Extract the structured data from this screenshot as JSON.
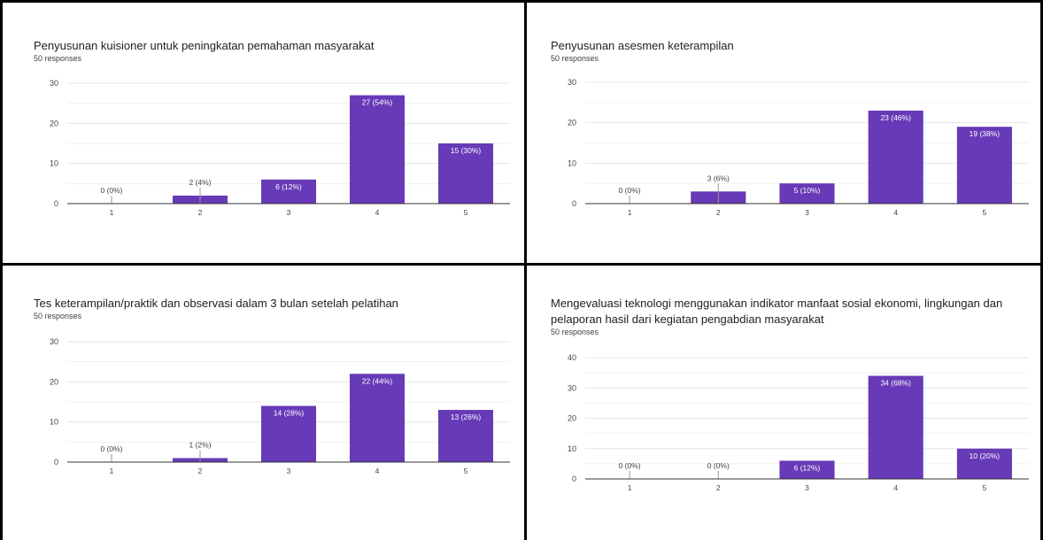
{
  "colors": {
    "bar": "#673ab7",
    "grid": "#e6e6e6",
    "axis": "#333333",
    "label_out": "#444444",
    "label_in": "#ffffff"
  },
  "chart_data": [
    {
      "type": "bar",
      "title": "Penyusunan kuisioner untuk peningkatan pemahaman masyarakat",
      "subtitle": "50 responses",
      "categories": [
        "1",
        "2",
        "3",
        "4",
        "5"
      ],
      "values": [
        0,
        2,
        6,
        27,
        15
      ],
      "labels": [
        "0 (0%)",
        "2 (4%)",
        "6 (12%)",
        "27 (54%)",
        "15 (30%)"
      ],
      "ylim": [
        0,
        30
      ],
      "yticks": [
        "0",
        "10",
        "20",
        "30"
      ],
      "grid": true
    },
    {
      "type": "bar",
      "title": "Penyusunan asesmen keterampilan",
      "subtitle": "50 responses",
      "categories": [
        "1",
        "2",
        "3",
        "4",
        "5"
      ],
      "values": [
        0,
        3,
        5,
        23,
        19
      ],
      "labels": [
        "0 (0%)",
        "3 (6%)",
        "5 (10%)",
        "23 (46%)",
        "19 (38%)"
      ],
      "ylim": [
        0,
        30
      ],
      "yticks": [
        "0",
        "10",
        "20",
        "30"
      ],
      "grid": true
    },
    {
      "type": "bar",
      "title": "Tes keterampilan/praktik dan observasi dalam 3 bulan setelah pelatihan",
      "subtitle": "50 responses",
      "categories": [
        "1",
        "2",
        "3",
        "4",
        "5"
      ],
      "values": [
        0,
        1,
        14,
        22,
        13
      ],
      "labels": [
        "0 (0%)",
        "1 (2%)",
        "14 (28%)",
        "22 (44%)",
        "13 (26%)"
      ],
      "ylim": [
        0,
        30
      ],
      "yticks": [
        "0",
        "10",
        "20",
        "30"
      ],
      "grid": true
    },
    {
      "type": "bar",
      "title": "Mengevaluasi teknologi menggunakan indikator manfaat sosial ekonomi, lingkungan dan pelaporan hasil dari kegiatan pengabdian masyarakat",
      "subtitle": "50 responses",
      "categories": [
        "1",
        "2",
        "3",
        "4",
        "5"
      ],
      "values": [
        0,
        0,
        6,
        34,
        10
      ],
      "labels": [
        "0 (0%)",
        "0 (0%)",
        "6 (12%)",
        "34 (68%)",
        "10 (20%)"
      ],
      "ylim": [
        0,
        40
      ],
      "yticks": [
        "0",
        "10",
        "20",
        "30",
        "40"
      ],
      "grid": true
    }
  ]
}
